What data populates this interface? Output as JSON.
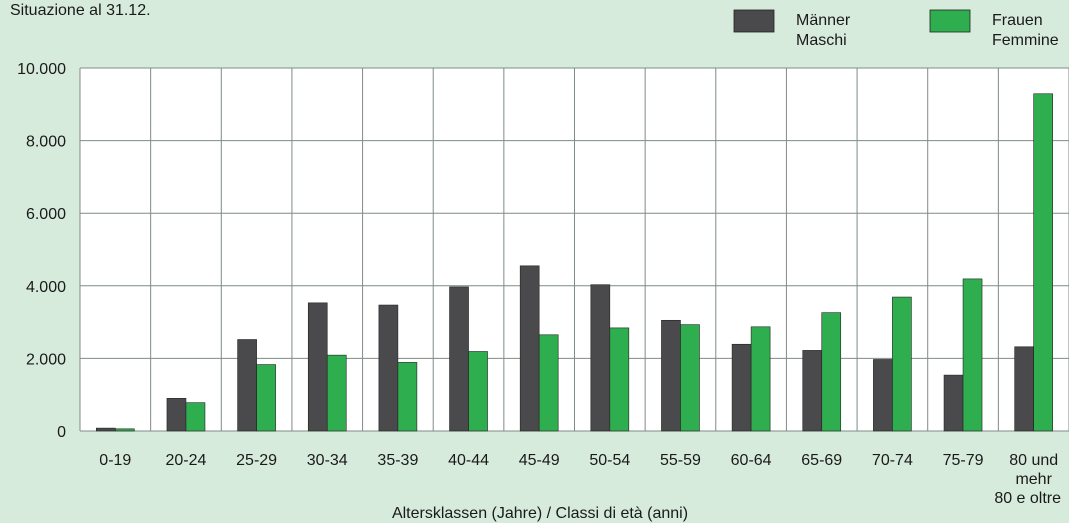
{
  "subtitle": "Situazione al 31.12.",
  "colors": {
    "background": "#d7ebdc",
    "men": "#4a4a4c",
    "women": "#2fae4f",
    "grid": "#7f8c84"
  },
  "chart_data": {
    "type": "bar",
    "xlabel": "Altersklassen (Jahre) / Classi di età (anni)",
    "ylabel": "",
    "ylim": [
      0,
      10000
    ],
    "yticks": [
      0,
      2000,
      4000,
      6000,
      8000,
      10000
    ],
    "ytick_labels": [
      "0",
      "2.000",
      "4.000",
      "6.000",
      "8.000",
      "10.000"
    ],
    "grid": true,
    "legend": "top-right",
    "categories": [
      "0-19",
      "20-24",
      "25-29",
      "30-34",
      "35-39",
      "40-44",
      "45-49",
      "50-54",
      "55-59",
      "60-64",
      "65-69",
      "70-74",
      "75-79",
      "80 und mehr 80 e oltre"
    ],
    "category_lines": [
      [
        "0-19"
      ],
      [
        "20-24"
      ],
      [
        "25-29"
      ],
      [
        "30-34"
      ],
      [
        "35-39"
      ],
      [
        "40-44"
      ],
      [
        "45-49"
      ],
      [
        "50-54"
      ],
      [
        "55-59"
      ],
      [
        "60-64"
      ],
      [
        "65-69"
      ],
      [
        "70-74"
      ],
      [
        "75-79"
      ],
      [
        "80 und",
        "mehr",
        "80 e oltre"
      ]
    ],
    "series": [
      {
        "name": "Männer Maschi",
        "name_lines": [
          "Männer",
          "Maschi"
        ],
        "color": "#4a4a4c",
        "values": [
          80,
          900,
          2520,
          3530,
          3470,
          3970,
          4550,
          4030,
          3050,
          2390,
          2220,
          1970,
          1540,
          2320
        ]
      },
      {
        "name": "Frauen Femmine",
        "name_lines": [
          "Frauen",
          "Femmine"
        ],
        "color": "#2fae4f",
        "values": [
          60,
          780,
          1830,
          2090,
          1890,
          2190,
          2650,
          2840,
          2930,
          2870,
          3260,
          3690,
          4190,
          9290
        ]
      }
    ]
  }
}
